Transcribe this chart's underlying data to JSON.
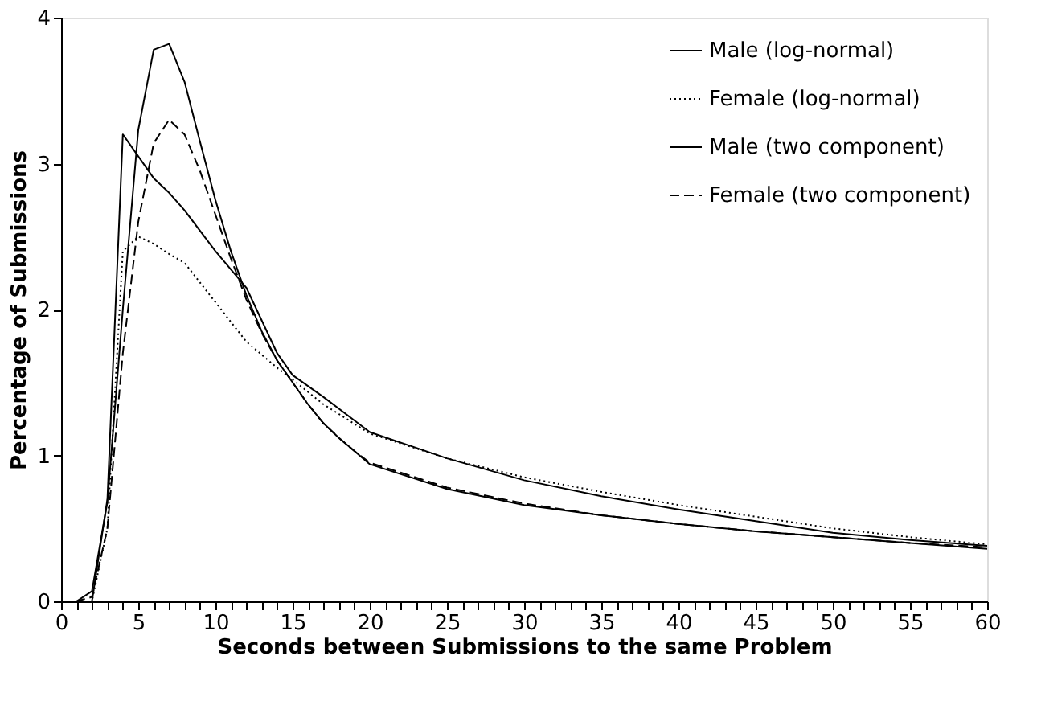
{
  "chart_data": {
    "type": "line",
    "xlabel": "Seconds between Submissions to the same Problem",
    "ylabel": "Percentage of Submissions",
    "xlim": [
      0,
      60
    ],
    "ylim": [
      0,
      4
    ],
    "yticks": [
      0,
      1,
      2,
      3,
      4
    ],
    "xticks": [
      0,
      {
        "value": 1,
        "label": null
      },
      {
        "value": 2,
        "label": null
      },
      {
        "value": 3,
        "label": null
      },
      {
        "value": 4,
        "label": null
      },
      5,
      {
        "value": 6,
        "label": null
      },
      {
        "value": 7,
        "label": null
      },
      {
        "value": 8,
        "label": null
      },
      {
        "value": 9,
        "label": null
      },
      10,
      {
        "value": 11,
        "label": null
      },
      {
        "value": 12,
        "label": null
      },
      {
        "value": 13,
        "label": null
      },
      {
        "value": 14,
        "label": null
      },
      15,
      {
        "value": 16,
        "label": null
      },
      {
        "value": 17,
        "label": null
      },
      {
        "value": 18,
        "label": null
      },
      {
        "value": 19,
        "label": null
      },
      20,
      {
        "value": 21,
        "label": null
      },
      {
        "value": 22,
        "label": null
      },
      {
        "value": 23,
        "label": null
      },
      {
        "value": 24,
        "label": null
      },
      25,
      {
        "value": 26,
        "label": null
      },
      {
        "value": 27,
        "label": null
      },
      {
        "value": 28,
        "label": null
      },
      {
        "value": 29,
        "label": null
      },
      30,
      {
        "value": 31,
        "label": null
      },
      {
        "value": 32,
        "label": null
      },
      {
        "value": 33,
        "label": null
      },
      {
        "value": 34,
        "label": null
      },
      35,
      {
        "value": 36,
        "label": null
      },
      {
        "value": 37,
        "label": null
      },
      {
        "value": 38,
        "label": null
      },
      {
        "value": 39,
        "label": null
      },
      40,
      {
        "value": 41,
        "label": null
      },
      {
        "value": 42,
        "label": null
      },
      {
        "value": 43,
        "label": null
      },
      {
        "value": 44,
        "label": null
      },
      45,
      {
        "value": 46,
        "label": null
      },
      {
        "value": 47,
        "label": null
      },
      {
        "value": 48,
        "label": null
      },
      {
        "value": 49,
        "label": null
      },
      50,
      {
        "value": 51,
        "label": null
      },
      {
        "value": 52,
        "label": null
      },
      {
        "value": 53,
        "label": null
      },
      {
        "value": 54,
        "label": null
      },
      55,
      {
        "value": 56,
        "label": null
      },
      {
        "value": 57,
        "label": null
      },
      {
        "value": 58,
        "label": null
      },
      {
        "value": 59,
        "label": null
      },
      60
    ],
    "grid": false,
    "legend": "top right",
    "marker": "none",
    "series": [
      {
        "name": "Male (log-normal)",
        "color": "#000000",
        "line_style": "solid",
        "x": [
          0,
          1,
          2,
          3,
          4,
          5,
          6,
          7,
          8,
          10,
          12,
          14,
          15,
          17,
          20,
          25,
          30,
          35,
          40,
          45,
          50,
          55,
          60
        ],
        "values": [
          0,
          0,
          0,
          0.7,
          3.2,
          3.05,
          2.9,
          2.8,
          2.68,
          2.4,
          2.15,
          1.7,
          1.55,
          1.4,
          1.16,
          0.98,
          0.83,
          0.72,
          0.63,
          0.55,
          0.47,
          0.42,
          0.38
        ]
      },
      {
        "name": "Female (log-normal)",
        "color": "#000000",
        "line_style": "dotted",
        "x": [
          0,
          1,
          2,
          3,
          4,
          5,
          6,
          7,
          8,
          10,
          12,
          14,
          15,
          17,
          20,
          25,
          30,
          35,
          40,
          45,
          50,
          55,
          60
        ],
        "values": [
          0,
          0,
          0,
          0.5,
          2.4,
          2.5,
          2.45,
          2.38,
          2.32,
          2.05,
          1.78,
          1.6,
          1.52,
          1.35,
          1.15,
          0.98,
          0.85,
          0.75,
          0.66,
          0.58,
          0.5,
          0.44,
          0.39
        ]
      },
      {
        "name": "Male (two component)",
        "color": "#000000",
        "line_style": "solid",
        "x": [
          0,
          1,
          2,
          3,
          4,
          5,
          6,
          7,
          8,
          9,
          10,
          11,
          12,
          13,
          14,
          15,
          16,
          17,
          18,
          19,
          20,
          25,
          30,
          35,
          40,
          45,
          50,
          55,
          60
        ],
        "values": [
          0,
          0,
          0.07,
          0.68,
          2.0,
          3.23,
          3.78,
          3.82,
          3.56,
          3.15,
          2.75,
          2.4,
          2.1,
          1.85,
          1.65,
          1.5,
          1.35,
          1.22,
          1.12,
          1.03,
          0.94,
          0.77,
          0.66,
          0.59,
          0.53,
          0.48,
          0.44,
          0.4,
          0.36
        ]
      },
      {
        "name": "Female (two component)",
        "color": "#000000",
        "line_style": "dashed",
        "x": [
          0,
          1,
          2,
          3,
          4,
          5,
          6,
          7,
          8,
          9,
          10,
          11,
          12,
          13,
          14,
          15,
          16,
          17,
          18,
          19,
          20,
          25,
          30,
          35,
          40,
          45,
          50,
          55,
          60
        ],
        "values": [
          0,
          0,
          0.03,
          0.5,
          1.7,
          2.6,
          3.14,
          3.3,
          3.2,
          2.95,
          2.65,
          2.35,
          2.07,
          1.84,
          1.65,
          1.5,
          1.35,
          1.22,
          1.12,
          1.03,
          0.95,
          0.78,
          0.67,
          0.59,
          0.53,
          0.48,
          0.44,
          0.4,
          0.37
        ]
      }
    ]
  }
}
